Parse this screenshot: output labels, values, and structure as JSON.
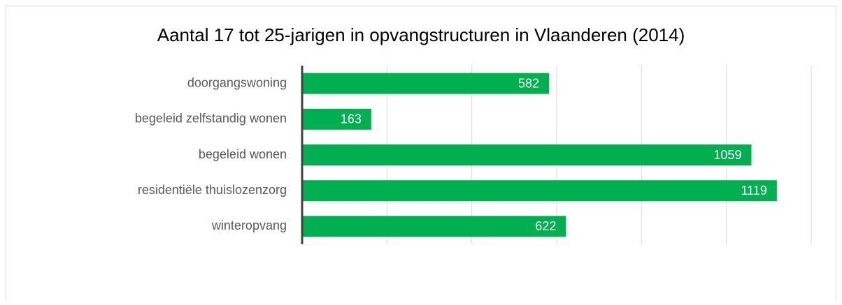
{
  "chart_data": {
    "type": "bar",
    "orientation": "horizontal",
    "title": "Aantal 17 tot 25-jarigen in opvangstructuren in Vlaanderen (2014)",
    "categories": [
      "doorgangswoning",
      "begeleid zelfstandig wonen",
      "begeleid wonen",
      "residentiële thuislozenzorg",
      "winteropvang"
    ],
    "values": [
      582,
      163,
      1059,
      1119,
      622
    ],
    "color": "#00b050",
    "xlim": [
      0,
      1200
    ],
    "xticks": [
      0,
      200,
      400,
      600,
      800,
      1000,
      1200
    ],
    "grid": true,
    "data_labels": true
  }
}
